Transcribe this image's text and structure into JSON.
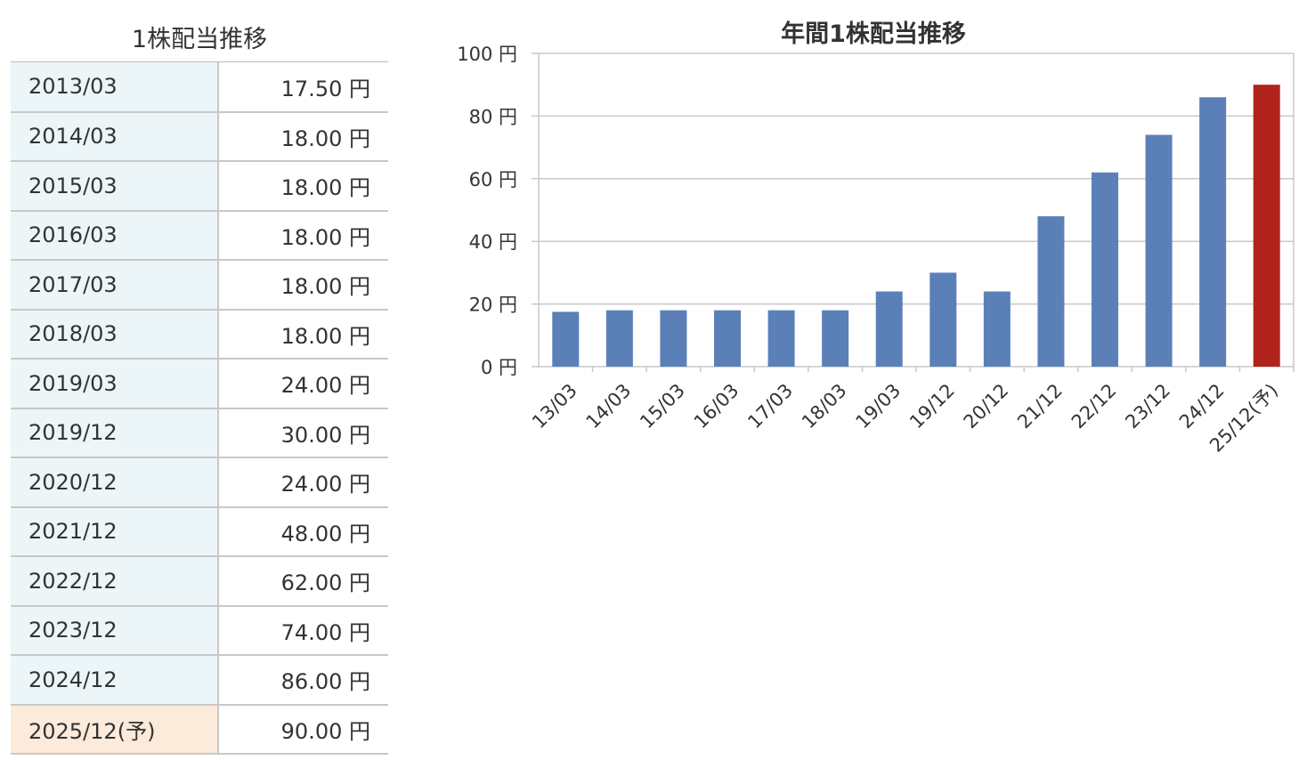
{
  "table": {
    "title": "1株配当推移",
    "rows": [
      {
        "period": "2013/03",
        "amount": "17.50 円",
        "forecast": false
      },
      {
        "period": "2014/03",
        "amount": "18.00 円",
        "forecast": false
      },
      {
        "period": "2015/03",
        "amount": "18.00 円",
        "forecast": false
      },
      {
        "period": "2016/03",
        "amount": "18.00 円",
        "forecast": false
      },
      {
        "period": "2017/03",
        "amount": "18.00 円",
        "forecast": false
      },
      {
        "period": "2018/03",
        "amount": "18.00 円",
        "forecast": false
      },
      {
        "period": "2019/03",
        "amount": "24.00 円",
        "forecast": false
      },
      {
        "period": "2019/12",
        "amount": "30.00 円",
        "forecast": false
      },
      {
        "period": "2020/12",
        "amount": "24.00 円",
        "forecast": false
      },
      {
        "period": "2021/12",
        "amount": "48.00 円",
        "forecast": false
      },
      {
        "period": "2022/12",
        "amount": "62.00 円",
        "forecast": false
      },
      {
        "period": "2023/12",
        "amount": "74.00 円",
        "forecast": false
      },
      {
        "period": "2024/12",
        "amount": "86.00 円",
        "forecast": false
      },
      {
        "period": "2025/12(予)",
        "amount": "90.00 円",
        "forecast": true
      }
    ]
  },
  "chart_data": {
    "type": "bar",
    "title": "年間1株配当推移",
    "categories": [
      "13/03",
      "14/03",
      "15/03",
      "16/03",
      "17/03",
      "18/03",
      "19/03",
      "19/12",
      "20/12",
      "21/12",
      "22/12",
      "23/12",
      "24/12",
      "25/12(予)"
    ],
    "values": [
      17.5,
      18,
      18,
      18,
      18,
      18,
      24,
      30,
      24,
      48,
      62,
      74,
      86,
      90
    ],
    "forecast_flags": [
      false,
      false,
      false,
      false,
      false,
      false,
      false,
      false,
      false,
      false,
      false,
      false,
      false,
      true
    ],
    "ylim": [
      0,
      100
    ],
    "yticks": [
      0,
      20,
      40,
      60,
      80,
      100
    ],
    "ytick_labels": [
      "0 円",
      "20 円",
      "40 円",
      "60 円",
      "80 円",
      "100 円"
    ],
    "grid": true,
    "xlabel": "",
    "ylabel": ""
  },
  "colors": {
    "bar": "#5b80b8",
    "forecast_bar": "#b0231a",
    "grid": "#c8c8c8",
    "period_cell": "#ecf6f8",
    "forecast_cell": "#fceadb"
  }
}
